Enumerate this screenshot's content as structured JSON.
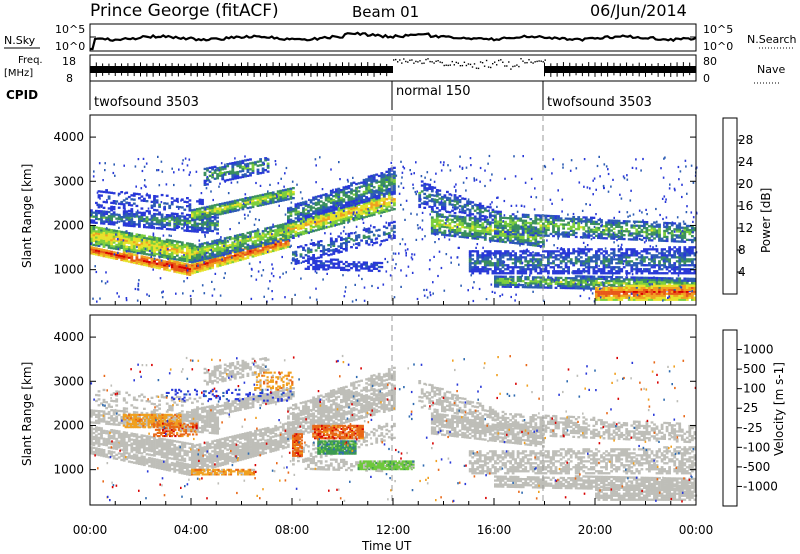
{
  "header": {
    "station": "Prince George (fitACF)",
    "beam": "Beam 01",
    "date": "06/Jun/2014"
  },
  "panels": {
    "nsky_label": "N.Sky",
    "nsky_ticks": [
      "10^5",
      "10^0"
    ],
    "nsearch_label": "N.Search",
    "nsearch_ticks": [
      "10^5",
      "10^0"
    ],
    "freq_label": "Freq.",
    "freq_unit": "[MHz]",
    "freq_ticks": [
      "18",
      "8"
    ],
    "nave_label": "Nave",
    "nave_ticks": [
      "80",
      "0"
    ],
    "cpid_label": "CPID",
    "cpid_segments": [
      "twofsound 3503",
      "normal 150",
      "twofsound 3503"
    ]
  },
  "colors": {
    "power_scale": [
      "#2838d8",
      "#2c5cb4",
      "#3a8f5e",
      "#7ccf3c",
      "#e6e22a",
      "#f0a020",
      "#e85818",
      "#d80000"
    ],
    "velocity_scale": [
      "#2838d8",
      "#2e6ab0",
      "#3d9a52",
      "#6ec83c",
      "#bebeb8",
      "#f0a020",
      "#e86818",
      "#d80000"
    ]
  },
  "chart_data": [
    {
      "type": "heatmap",
      "name": "power",
      "ylabel": "Slant Range [km]",
      "yticks": [
        "1000",
        "2000",
        "3000",
        "4000"
      ],
      "ylim": [
        200,
        4500
      ],
      "xlim": [
        "00:00",
        "24:00"
      ],
      "colorbar": {
        "label": "Power [dB]",
        "ticks": [
          "4",
          "8",
          "12",
          "16",
          "20",
          "24",
          "28"
        ],
        "range": [
          0,
          32
        ]
      },
      "bands": [
        {
          "t0": 0.0,
          "t1": 4.0,
          "r0": 1350,
          "r1": 1500,
          "r0e": 850,
          "r1e": 1100,
          "v": 29,
          "d": 0.95
        },
        {
          "t0": 0.0,
          "t1": 4.5,
          "r0": 1550,
          "r1": 2000,
          "r0e": 1100,
          "r1e": 1500,
          "v": 20,
          "d": 0.9
        },
        {
          "t0": 0.0,
          "t1": 5.0,
          "r0": 2050,
          "r1": 2350,
          "r0e": 1800,
          "r1e": 2200,
          "v": 11,
          "d": 0.75
        },
        {
          "t0": 0.2,
          "t1": 4.5,
          "r0": 2400,
          "r1": 2800,
          "r0e": 2100,
          "r1e": 2600,
          "v": 6,
          "d": 0.3
        },
        {
          "t0": 4.0,
          "t1": 7.8,
          "r0": 900,
          "r1": 1150,
          "r0e": 1500,
          "r1e": 1750,
          "v": 27,
          "d": 0.95
        },
        {
          "t0": 4.0,
          "t1": 8.0,
          "r0": 1150,
          "r1": 1550,
          "r0e": 1700,
          "r1e": 2100,
          "v": 16,
          "d": 0.85
        },
        {
          "t0": 4.0,
          "t1": 8.0,
          "r0": 2100,
          "r1": 2350,
          "r0e": 2600,
          "r1e": 2850,
          "v": 17,
          "d": 0.9
        },
        {
          "t0": 4.5,
          "t1": 7.0,
          "r0": 2900,
          "r1": 3300,
          "r0e": 3200,
          "r1e": 3550,
          "v": 12,
          "d": 0.6
        },
        {
          "t0": 7.8,
          "t1": 12.0,
          "r0": 1700,
          "r1": 2050,
          "r0e": 2350,
          "r1e": 2800,
          "v": 21,
          "d": 0.85
        },
        {
          "t0": 7.8,
          "t1": 12.0,
          "r0": 2050,
          "r1": 2400,
          "r0e": 2700,
          "r1e": 3300,
          "v": 12,
          "d": 0.75
        },
        {
          "t0": 8.0,
          "t1": 12.0,
          "r0": 1100,
          "r1": 1500,
          "r0e": 1700,
          "r1e": 2100,
          "v": 9,
          "d": 0.45
        },
        {
          "t0": 8.5,
          "t1": 11.5,
          "r0": 1000,
          "r1": 1250,
          "r0e": 950,
          "r1e": 1150,
          "v": 5,
          "d": 0.55
        },
        {
          "t0": 13.0,
          "t1": 16.0,
          "r0": 2400,
          "r1": 3000,
          "r0e": 2100,
          "r1e": 2350,
          "v": 10,
          "d": 0.55
        },
        {
          "t0": 13.5,
          "t1": 18.0,
          "r0": 1800,
          "r1": 2300,
          "r0e": 1500,
          "r1e": 1900,
          "v": 16,
          "d": 0.8
        },
        {
          "t0": 15.0,
          "t1": 24.0,
          "r0": 900,
          "r1": 1400,
          "r0e": 900,
          "r1e": 1500,
          "v": 9,
          "d": 0.65
        },
        {
          "t0": 16.0,
          "t1": 24.0,
          "r0": 1800,
          "r1": 2300,
          "r0e": 1600,
          "r1e": 2000,
          "v": 14,
          "d": 0.6
        },
        {
          "t0": 16.0,
          "t1": 24.0,
          "r0": 600,
          "r1": 850,
          "r0e": 500,
          "r1e": 800,
          "v": 14,
          "d": 0.85
        },
        {
          "t0": 20.0,
          "t1": 24.0,
          "r0": 300,
          "r1": 600,
          "r0e": 300,
          "r1e": 650,
          "v": 27,
          "d": 0.95
        }
      ]
    },
    {
      "type": "heatmap",
      "name": "velocity",
      "ylabel": "Slant Range [km]",
      "yticks": [
        "1000",
        "2000",
        "3000",
        "4000"
      ],
      "ylim": [
        200,
        4500
      ],
      "xlim": [
        "00:00",
        "24:00"
      ],
      "xticks": [
        "00:00",
        "04:00",
        "08:00",
        "12:00",
        "16:00",
        "20:00",
        "00:00"
      ],
      "xlabel": "Time UT",
      "colorbar": {
        "label": "Velocity [m s-1]",
        "ticks": [
          "1000",
          "500",
          "100",
          "25",
          "-25",
          "-100",
          "-500",
          "-1000"
        ]
      },
      "patches": [
        {
          "t0": 1.3,
          "t1": 3.6,
          "r0": 1950,
          "r1": 2250,
          "k": 5,
          "d": 0.7
        },
        {
          "t0": 2.5,
          "t1": 4.2,
          "r0": 1750,
          "r1": 2050,
          "k": 6,
          "d": 0.45
        },
        {
          "t0": 4.0,
          "t1": 6.5,
          "r0": 880,
          "r1": 1000,
          "k": 5,
          "d": 0.7
        },
        {
          "t0": 8.0,
          "t1": 8.4,
          "r0": 1300,
          "r1": 1800,
          "k": 6,
          "d": 0.9
        },
        {
          "t0": 8.8,
          "t1": 10.8,
          "r0": 1700,
          "r1": 2000,
          "k": 6,
          "d": 0.8
        },
        {
          "t0": 9.0,
          "t1": 10.5,
          "r0": 1350,
          "r1": 1650,
          "k": 2,
          "d": 0.9
        },
        {
          "t0": 10.6,
          "t1": 12.8,
          "r0": 1000,
          "r1": 1200,
          "k": 3,
          "d": 0.95
        },
        {
          "t0": 3.0,
          "t1": 8.0,
          "r0": 2550,
          "r1": 2800,
          "k": 0,
          "d": 0.15
        },
        {
          "t0": 6.5,
          "t1": 8.0,
          "r0": 2800,
          "r1": 3200,
          "k": 5,
          "d": 0.25
        }
      ]
    }
  ]
}
